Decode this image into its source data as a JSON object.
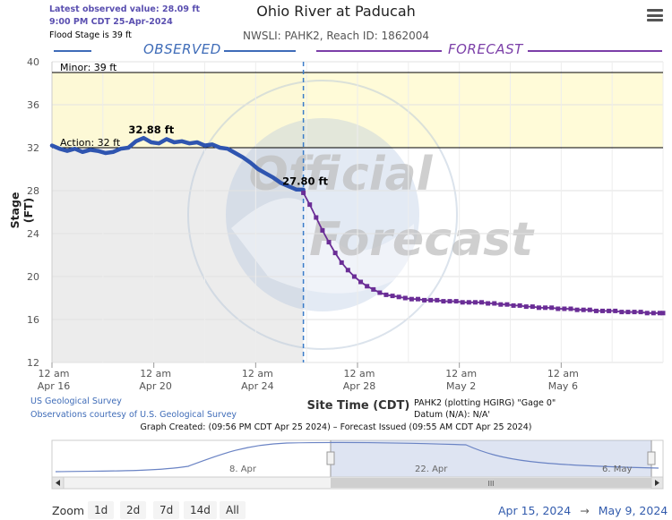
{
  "header": {
    "latest_line1": "Latest observed value: 28.09 ft",
    "latest_line2": "9:00 PM CDT 25-Apr-2024",
    "flood_stage": "Flood Stage is 39 ft",
    "title": "Ohio River at Paducah",
    "subtitle": "NWSLI: PAHK2, Reach ID: 1862004"
  },
  "menu_icon": "hamburger-icon",
  "legend": {
    "observed": "OBSERVED",
    "forecast": "FORECAST"
  },
  "watermark": {
    "line1": "Official",
    "line2": "Forecast"
  },
  "footer": {
    "credit1": "US Geological Survey",
    "credit2": "Observations courtesy of U.S. Geological Survey",
    "gage_line1": "PAHK2 (plotting HGIRG) \"Gage 0\"",
    "gage_line2": "Datum (N/A): N/A'",
    "graph_created": "Graph Created: (09:56 PM CDT Apr 25 2024) – Forecast Issued (09:55 AM CDT Apr 25 2024)"
  },
  "navigator": {
    "labels": [
      "8. Apr",
      "22. Apr",
      "6. May"
    ],
    "scroll_grip": "III"
  },
  "zoom": {
    "label": "Zoom",
    "buttons": [
      "1d",
      "2d",
      "7d",
      "14d",
      "All"
    ]
  },
  "range": {
    "from": "Apr 15, 2024",
    "arrow": "→",
    "to": "May 9, 2024"
  },
  "colors": {
    "observed": "#2f55b0",
    "forecast": "#6a2d96",
    "minor_band": "#fffbd4",
    "accent": "#3f6cb8"
  },
  "chart_data": {
    "type": "line",
    "title": "Ohio River at Paducah",
    "xlabel": "Site Time (CDT)",
    "ylabel": "Stage (FT)",
    "ylim": [
      12,
      40
    ],
    "yticks": [
      12,
      16,
      20,
      24,
      28,
      32,
      36,
      40
    ],
    "xlim_days": [
      0,
      24
    ],
    "xticks": [
      {
        "day": 0,
        "line1": "12 am",
        "line2": "Apr 16"
      },
      {
        "day": 4,
        "line1": "12 am",
        "line2": "Apr 20"
      },
      {
        "day": 8,
        "line1": "12 am",
        "line2": "Apr 24"
      },
      {
        "day": 12,
        "line1": "12 am",
        "line2": "Apr 28"
      },
      {
        "day": 16,
        "line1": "12 am",
        "line2": "May 2"
      },
      {
        "day": 20,
        "line1": "12 am",
        "line2": "May 6"
      }
    ],
    "thresholds": [
      {
        "name": "Minor",
        "label": "Minor: 39 ft",
        "value": 39
      },
      {
        "name": "Action",
        "label": "Action: 32 ft",
        "value": 32
      }
    ],
    "now_day": 9.875,
    "series": [
      {
        "name": "Observed",
        "peak_label": "32.88 ft",
        "peak_day": 3.9,
        "x": [
          0,
          0.3,
          0.6,
          0.9,
          1.2,
          1.5,
          1.8,
          2.1,
          2.4,
          2.7,
          3.0,
          3.3,
          3.6,
          3.9,
          4.2,
          4.5,
          4.8,
          5.1,
          5.4,
          5.7,
          6.0,
          6.3,
          6.6,
          6.9,
          7.2,
          7.5,
          7.8,
          8.1,
          8.4,
          8.7,
          9.0,
          9.3,
          9.6,
          9.875
        ],
        "y": [
          32.2,
          31.9,
          31.7,
          31.9,
          31.6,
          31.8,
          31.7,
          31.5,
          31.6,
          31.9,
          32.0,
          32.6,
          32.9,
          32.5,
          32.4,
          32.8,
          32.5,
          32.6,
          32.4,
          32.5,
          32.2,
          32.3,
          32.0,
          31.9,
          31.5,
          31.1,
          30.6,
          30.0,
          29.6,
          29.2,
          28.7,
          28.4,
          28.1,
          28.09
        ]
      },
      {
        "name": "Forecast",
        "end_label": "27.80 ft",
        "x": [
          9.875,
          10.125,
          10.375,
          10.625,
          10.875,
          11.125,
          11.375,
          11.625,
          11.875,
          12.125,
          12.375,
          12.625,
          12.875,
          13.125,
          13.375,
          13.625,
          13.875,
          14.125,
          14.375,
          14.625,
          14.875,
          15.125,
          15.375,
          15.625,
          15.875,
          16.125,
          16.375,
          16.625,
          16.875,
          17.125,
          17.375,
          17.625,
          17.875,
          18.125,
          18.375,
          18.625,
          18.875,
          19.125,
          19.375,
          19.625,
          19.875,
          20.125,
          20.375,
          20.625,
          20.875,
          21.125,
          21.375,
          21.625,
          21.875,
          22.125,
          22.375,
          22.625,
          22.875,
          23.125,
          23.375,
          23.625,
          23.875,
          24.0
        ],
        "y": [
          27.8,
          26.7,
          25.5,
          24.3,
          23.2,
          22.2,
          21.3,
          20.6,
          20.0,
          19.5,
          19.1,
          18.8,
          18.5,
          18.3,
          18.2,
          18.1,
          18.0,
          17.9,
          17.9,
          17.8,
          17.8,
          17.8,
          17.7,
          17.7,
          17.7,
          17.6,
          17.6,
          17.6,
          17.6,
          17.5,
          17.5,
          17.4,
          17.4,
          17.3,
          17.3,
          17.2,
          17.2,
          17.1,
          17.1,
          17.1,
          17.0,
          17.0,
          17.0,
          16.9,
          16.9,
          16.9,
          16.8,
          16.8,
          16.8,
          16.8,
          16.7,
          16.7,
          16.7,
          16.7,
          16.6,
          16.6,
          16.6,
          16.6
        ]
      }
    ]
  }
}
